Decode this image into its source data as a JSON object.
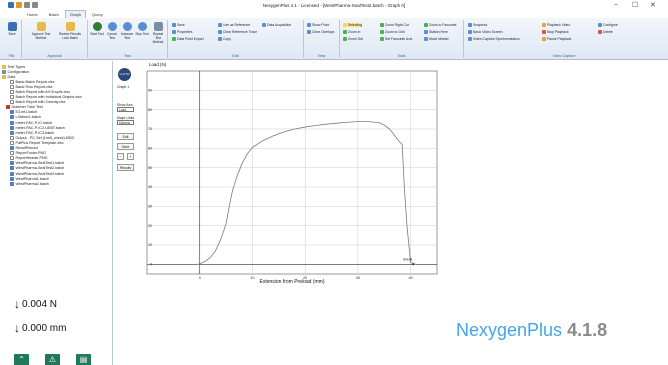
{
  "window": {
    "title": "NexygenPlus 4.1 - Licensed - [WestPharma-SealTest2.batch - Graph 0]",
    "controls": [
      "–",
      "☐",
      "✕"
    ]
  },
  "menu": {
    "tabs": [
      "Home",
      "Batch",
      "Graph",
      "Query"
    ],
    "active": "Graph"
  },
  "ribbon": {
    "groups": [
      {
        "label": "File",
        "buttons": [
          "Save"
        ]
      },
      {
        "label": "Approval",
        "buttons": [
          "Approve Test Method",
          "Review Results Lock Batch"
        ]
      },
      {
        "label": "Test",
        "buttons": [
          "Start Test",
          "Cancel Test",
          "Advance Test",
          "Stop Test",
          "Repeat Test Method"
        ]
      },
      {
        "label": "Edit",
        "items": [
          "Save",
          "Properties",
          "Data Point Export",
          "Use as Reference",
          "Clear Reference Trace",
          "Copy",
          "Data Acquisition"
        ]
      },
      {
        "label": "View",
        "items": [
          "Show Point",
          "Clear Overlays"
        ]
      },
      {
        "label": "Tools",
        "items": [
          "Selecting",
          "Zoom In",
          "Zoom Out",
          "Zoom Right Cut",
          "Zoom to Grid",
          "Set Favourite Axis",
          "Zoom to Favourite",
          "Station Here",
          "Move Marker"
        ]
      },
      {
        "label": "Video Capture",
        "items": [
          "Snapshot",
          "Basic Video Screen",
          "Video Capture Synchronisation",
          "Playback Video",
          "Stop Playback",
          "Pause Playback",
          "Configure",
          "Delete"
        ]
      }
    ]
  },
  "tree": {
    "items": [
      {
        "label": "Test Types",
        "indent": 0,
        "icon": "folder"
      },
      {
        "label": "Configuration",
        "indent": 0,
        "icon": "gear"
      },
      {
        "label": "Data",
        "indent": 0,
        "icon": "folder"
      },
      {
        "label": "Basic Batch Report.xlsx",
        "indent": 2,
        "icon": "doc"
      },
      {
        "label": "Basic Row Report.xlsx",
        "indent": 2,
        "icon": "doc"
      },
      {
        "label": "Batch Report with All Graphs.xlsx",
        "indent": 2,
        "icon": "doc"
      },
      {
        "label": "Batch Report with Individual Graphs.xlsx",
        "indent": 2,
        "icon": "doc"
      },
      {
        "label": "Batch Report with Overlay.xlsx",
        "indent": 2,
        "icon": "doc"
      },
      {
        "label": "Draemer Tube Test",
        "indent": 1,
        "icon": "red"
      },
      {
        "label": "E3.mt1.batch",
        "indent": 2,
        "icon": "blue"
      },
      {
        "label": "L3fatorv1.batch",
        "indent": 2,
        "icon": "blue"
      },
      {
        "label": "meter-PAC-P-IC.batch",
        "indent": 2,
        "icon": "blue"
      },
      {
        "label": "meter-PAC-P-IC2-UEBT.batch",
        "indent": 2,
        "icon": "blue"
      },
      {
        "label": "meter-PAC-P-IC3.batch",
        "indent": 2,
        "icon": "blue"
      },
      {
        "label": "Output - PC-Set (Limit_check).MDD",
        "indent": 2,
        "icon": "doc"
      },
      {
        "label": "PatPlus Report Template.xlsx",
        "indent": 2,
        "icon": "doc"
      },
      {
        "label": "ResultRecord",
        "indent": 2,
        "icon": "blue"
      },
      {
        "label": "ReportFooter.PNG",
        "indent": 2,
        "icon": "doc"
      },
      {
        "label": "ReportHeader.PNG",
        "indent": 2,
        "icon": "doc"
      },
      {
        "label": "WestPharma-SealTest1.batch",
        "indent": 2,
        "icon": "blue"
      },
      {
        "label": "WestPharma-SealTest2.batch",
        "indent": 2,
        "icon": "blue"
      },
      {
        "label": "WestPharma-SealTest3.batch",
        "indent": 2,
        "icon": "blue"
      },
      {
        "label": "WestPharma1.batch",
        "indent": 2,
        "icon": "blue"
      },
      {
        "label": "WestPharma2.batch",
        "indent": 2,
        "icon": "blue"
      }
    ]
  },
  "readouts": {
    "load": "0.004 N",
    "extension": "0.000 mm"
  },
  "bottom_buttons": [
    "up-icon",
    "warning-icon",
    "chart-icon"
  ],
  "graph_panel": {
    "graph_label": "Graph 1",
    "show_axis_label": "Show Axis",
    "show_axis_value": "Load",
    "major_units_label": "Major Units",
    "major_units_value": "Kilonew",
    "buttons": [
      "Edit",
      "Save",
      "Results"
    ]
  },
  "chart_data": {
    "type": "line",
    "ylabel": "Load (N)",
    "xlabel": "Extension from Preload (mm)",
    "xlim": [
      -10,
      45
    ],
    "ylim": [
      -5,
      100
    ],
    "x_ticks": [
      0,
      10,
      20,
      30,
      40
    ],
    "y_ticks": [
      0,
      10,
      20,
      30,
      40,
      50,
      60,
      70,
      80,
      90
    ],
    "grid": true,
    "annotations": [
      {
        "text": "Break",
        "x": 40.5,
        "y": 2
      }
    ],
    "series": [
      {
        "x": [
          -0.5,
          0,
          1,
          2,
          3,
          4,
          5,
          5.6,
          6.2,
          7,
          8,
          9,
          10,
          12,
          14,
          16,
          18,
          20,
          22,
          24,
          26,
          28,
          30,
          32,
          34,
          35,
          36,
          37,
          38,
          38.4,
          38.8,
          39.3,
          40,
          41
        ],
        "y": [
          0,
          0.3,
          1.5,
          3.5,
          7,
          13,
          21,
          30,
          38,
          45,
          52,
          57,
          60.5,
          64,
          66.5,
          68.5,
          70,
          71,
          71.8,
          72.5,
          73,
          73.5,
          73.8,
          73.8,
          73.3,
          72,
          70,
          66.5,
          63,
          62,
          40,
          20,
          1,
          0
        ]
      }
    ]
  },
  "brand": {
    "name": "NexygenPlus",
    "version": "4.1.8"
  }
}
